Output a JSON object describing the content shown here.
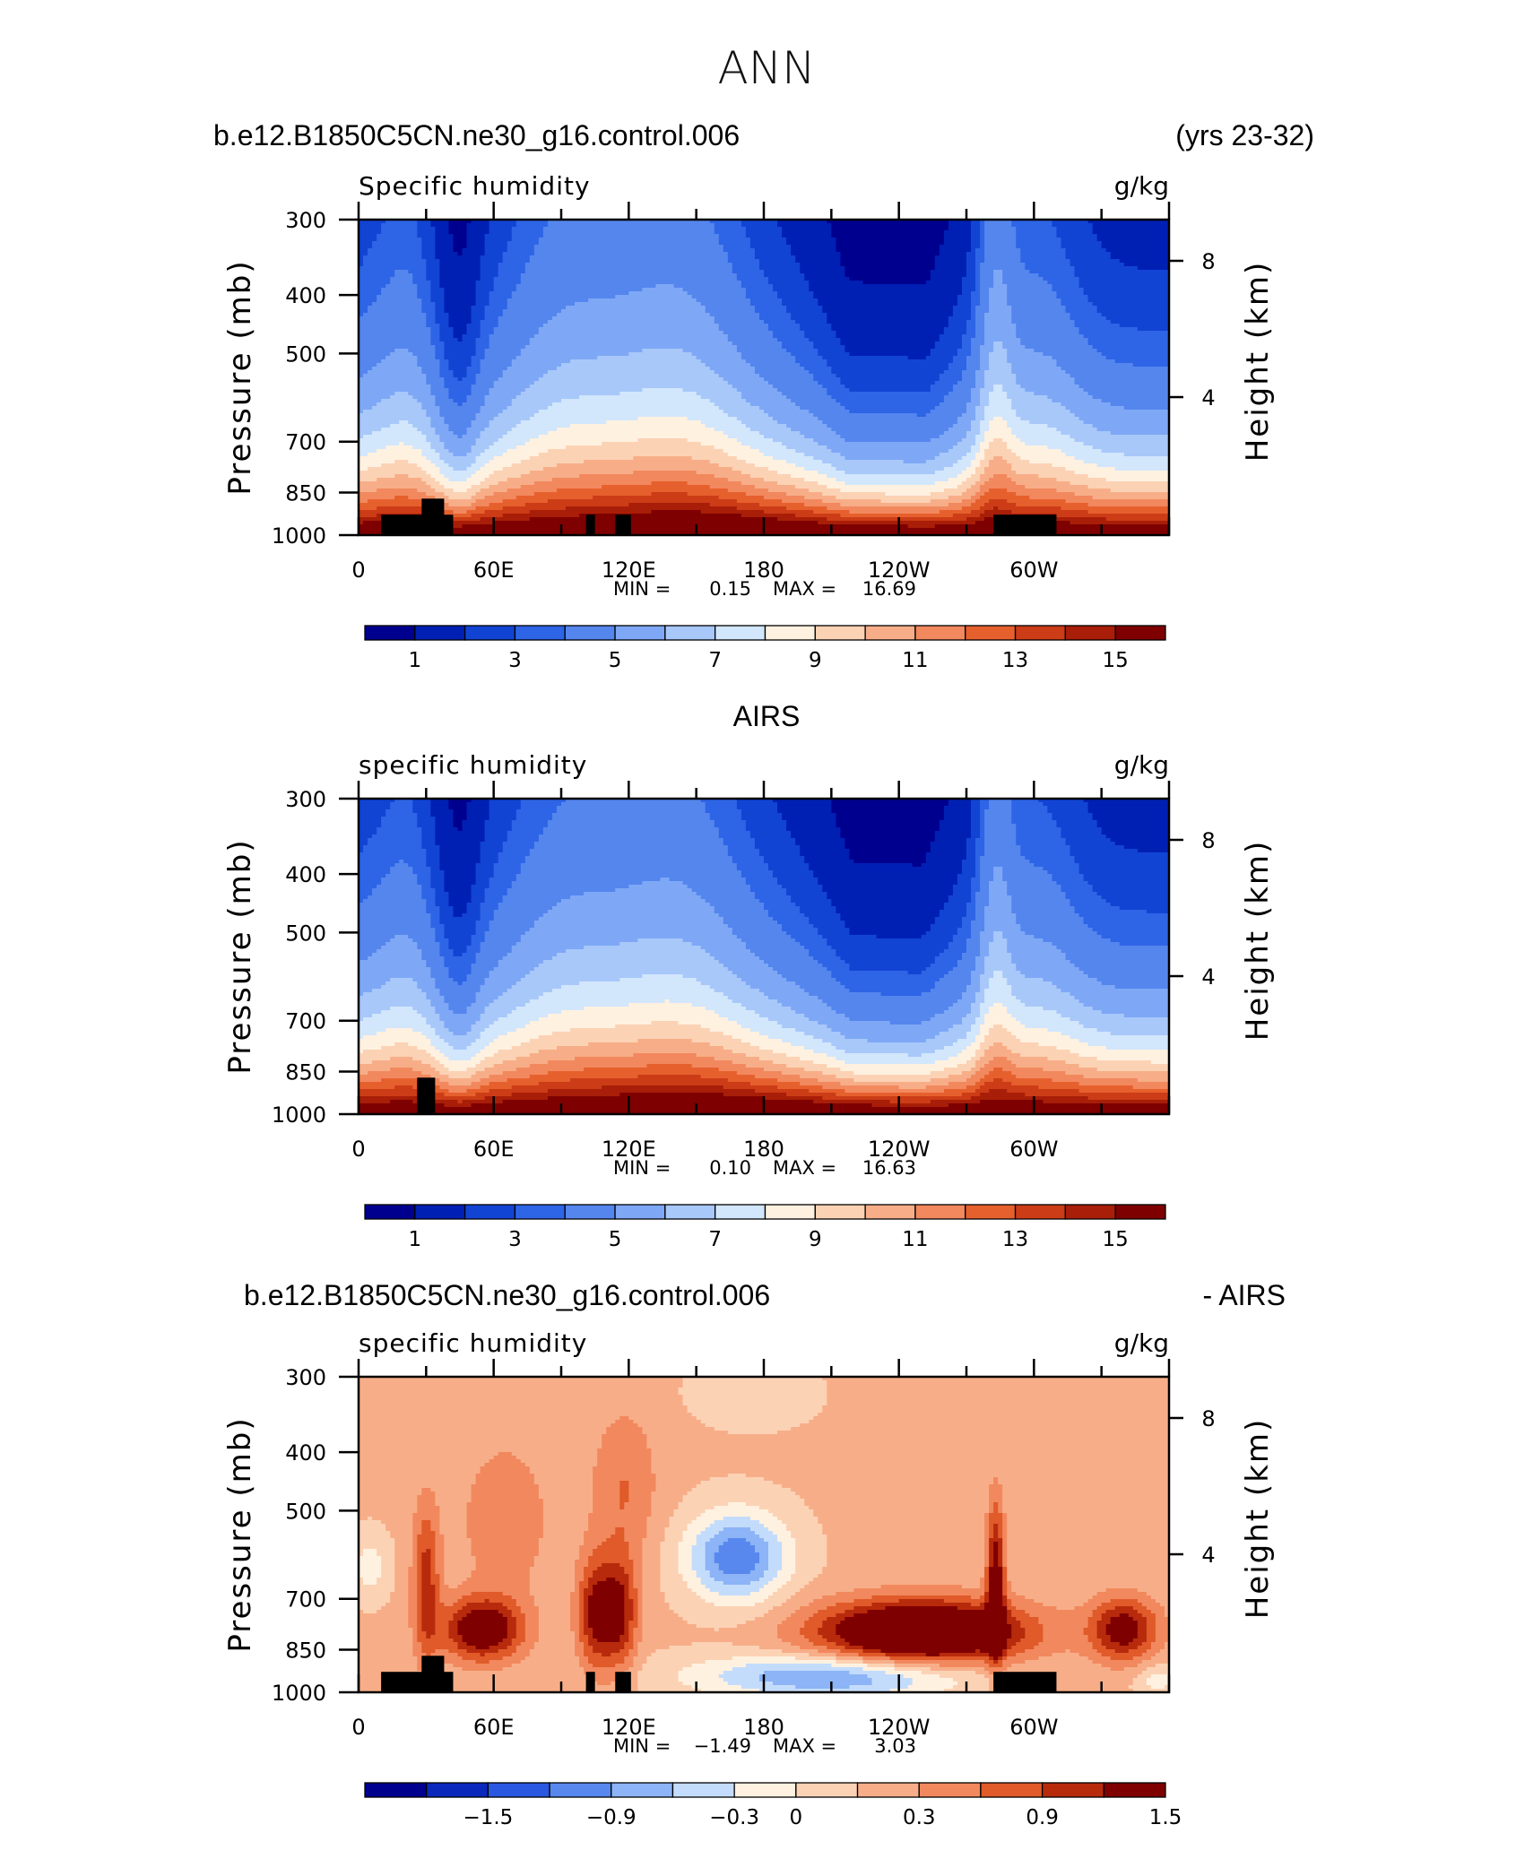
{
  "figure": {
    "season": "ANN",
    "case_name": "b.e12.B1850C5CN.ne30_g16.control.006",
    "years": "(yrs 23-32)",
    "obs_name": "AIRS",
    "diff_case": "b.e12.B1850C5CN.ne30_g16.control.006",
    "diff_obs": "- AIRS",
    "min_label": "MIN =",
    "max_label": "MAX ="
  },
  "axes": {
    "ylabel_left": "Pressure (mb)",
    "ylabel_right": "Height (km)",
    "pressure_ticks": [
      "300",
      "400",
      "500",
      "700",
      "850",
      "1000"
    ],
    "height_ticks": [
      "8",
      "4"
    ],
    "lon_ticks": [
      "0",
      "60E",
      "120E",
      "180",
      "120W",
      "60W"
    ]
  },
  "colors": {
    "qscale": [
      "#00008f",
      "#0020b4",
      "#1244d4",
      "#2e64e6",
      "#5586ee",
      "#7ea8f6",
      "#a8c8fa",
      "#d2e6fc",
      "#fff1e0",
      "#fcd2b5",
      "#f7ae88",
      "#f2885e",
      "#e6602e",
      "#cc3c16",
      "#a81e08",
      "#7f0000"
    ],
    "diffscale": [
      "#00008f",
      "#0a28bc",
      "#2a58e0",
      "#5888ee",
      "#8cb4f6",
      "#c4dcfc",
      "#fff1e0",
      "#fcd2b5",
      "#f7ae88",
      "#f2885e",
      "#e05a2a",
      "#b82a0c",
      "#7f0000"
    ]
  },
  "chart_data": [
    {
      "type": "heatmap",
      "title": "b.e12.B1850C5CN.ne30_g16.control.006",
      "subtitle": "(yrs 23-32)",
      "left_string": "Specific humidity",
      "units": "g/kg",
      "xlabel": "",
      "ylabel": "Pressure (mb)",
      "x_range": [
        0,
        360
      ],
      "y_range": [
        1000,
        300
      ],
      "y_log_scale": true,
      "min_value": "0.15",
      "max_value": "16.69",
      "colorbar_labels": [
        "1",
        "3",
        "5",
        "7",
        "9",
        "11",
        "13",
        "15"
      ],
      "colorbar_levels": [
        0.5,
        1,
        1.5,
        2,
        3,
        4,
        5,
        6,
        7,
        8,
        9,
        10,
        11,
        12,
        13,
        14,
        15
      ]
    },
    {
      "type": "heatmap",
      "title": "AIRS",
      "left_string": "specific humidity",
      "units": "g/kg",
      "xlabel": "",
      "ylabel": "Pressure (mb)",
      "x_range": [
        0,
        360
      ],
      "y_range": [
        1000,
        300
      ],
      "y_log_scale": true,
      "min_value": "0.10",
      "max_value": "16.63",
      "colorbar_labels": [
        "1",
        "3",
        "5",
        "7",
        "9",
        "11",
        "13",
        "15"
      ],
      "colorbar_levels": [
        0.5,
        1,
        1.5,
        2,
        3,
        4,
        5,
        6,
        7,
        8,
        9,
        10,
        11,
        12,
        13,
        14,
        15
      ]
    },
    {
      "type": "heatmap",
      "title": "b.e12.B1850C5CN.ne30_g16.control.006",
      "subtitle": "- AIRS",
      "left_string": "specific humidity",
      "units": "g/kg",
      "xlabel": "",
      "ylabel": "Pressure (mb)",
      "x_range": [
        0,
        360
      ],
      "y_range": [
        1000,
        300
      ],
      "y_log_scale": true,
      "min_value": "−1.49",
      "max_value": "3.03",
      "colorbar_labels": [
        "−1.5",
        "−0.9",
        "−0.3",
        "0",
        "0.3",
        "0.9",
        "1.5"
      ],
      "colorbar_levels": [
        -1.8,
        -1.5,
        -1.2,
        -0.9,
        -0.6,
        -0.3,
        0,
        0.3,
        0.6,
        0.9,
        1.2,
        1.5,
        1.8,
        2.1
      ]
    }
  ]
}
